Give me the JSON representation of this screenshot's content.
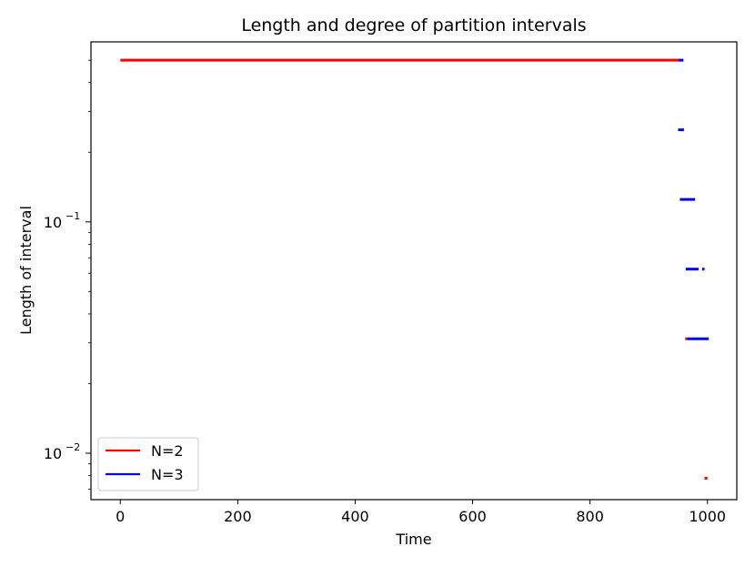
{
  "chart_data": {
    "type": "line",
    "title": "Length and degree of partition intervals",
    "xlabel": "Time",
    "ylabel": "Length of interval",
    "xlim": [
      -50,
      1050
    ],
    "ylim": [
      0.0063,
      0.6
    ],
    "yscale": "log",
    "x_ticks": [
      0,
      200,
      400,
      600,
      800,
      1000
    ],
    "y_ticks": [
      {
        "value": 0.01,
        "base": "10",
        "exp": "−2"
      },
      {
        "value": 0.1,
        "base": "10",
        "exp": "−1"
      }
    ],
    "grid": false,
    "legend_position": "lower-left",
    "series": [
      {
        "name": "N=2",
        "color": "#ff0000",
        "segments": [
          {
            "x": [
              0,
              953
            ],
            "y": 0.5
          },
          {
            "x": [
              962,
              965
            ],
            "y": 0.03125
          },
          {
            "x": [
              995,
              1000
            ],
            "y": 0.0078
          }
        ]
      },
      {
        "name": "N=3",
        "color": "#0000ff",
        "segments": [
          {
            "x": [
              951,
              959
            ],
            "y": 0.5
          },
          {
            "x": [
              950,
              960
            ],
            "y": 0.25
          },
          {
            "x": [
              953,
              979
            ],
            "y": 0.125
          },
          {
            "x": [
              963,
              985
            ],
            "y": 0.0625
          },
          {
            "x": [
              991,
              995
            ],
            "y": 0.0625
          },
          {
            "x": [
              965,
              1002
            ],
            "y": 0.03125
          }
        ]
      }
    ]
  }
}
